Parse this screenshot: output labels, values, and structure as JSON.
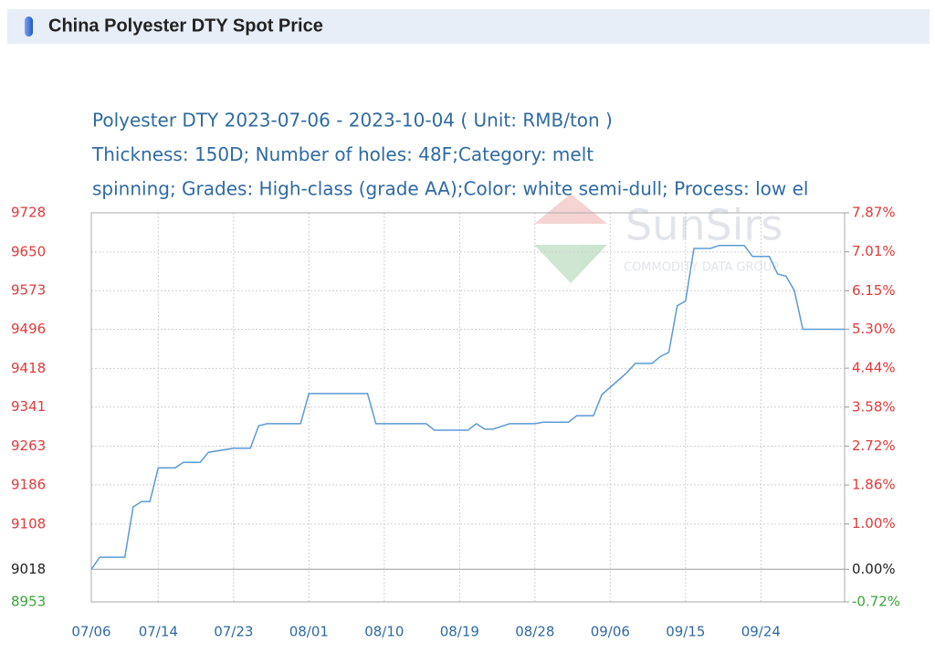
{
  "chart_data": {
    "type": "line",
    "title": "China Polyester DTY Spot Price",
    "subtitle": [
      "Polyester DTY 2023-07-06 - 2023-10-04    ( Unit: RMB/ton )",
      "Thickness: 150D; Number of holes: 48F;Category: melt",
      "spinning; Grades: High-class (grade AA);Color: white semi-dull; Process: low el"
    ],
    "watermark": [
      "SunSirs",
      "COMMODITY DATA GROUP"
    ],
    "x": [
      "07/06",
      "07/07",
      "07/10",
      "07/11",
      "07/12",
      "07/13",
      "07/14",
      "07/16",
      "07/17",
      "07/19",
      "07/20",
      "07/23",
      "07/25",
      "07/26",
      "07/27",
      "07/31",
      "08/01",
      "08/08",
      "08/09",
      "08/15",
      "08/16",
      "08/20",
      "08/21",
      "08/22",
      "08/23",
      "08/25",
      "08/28",
      "08/29",
      "09/01",
      "09/02",
      "09/04",
      "09/05",
      "09/07",
      "09/08",
      "09/09",
      "09/11",
      "09/12",
      "09/13",
      "09/14",
      "09/15",
      "09/16",
      "09/18",
      "09/19",
      "09/22",
      "09/23",
      "09/25",
      "09/26",
      "09/27",
      "09/28",
      "09/29",
      "10/04"
    ],
    "series": [
      {
        "color": "#5b9bd5",
        "values": [
          9018,
          9042,
          9042,
          9142,
          9153,
          9153,
          9220,
          9220,
          9231,
          9231,
          9251,
          9259,
          9259,
          9304,
          9308,
          9308,
          9368,
          9368,
          9308,
          9308,
          9295,
          9295,
          9308,
          9297,
          9297,
          9308,
          9308,
          9311,
          9311,
          9324,
          9324,
          9366,
          9395,
          9410,
          9428,
          9428,
          9442,
          9450,
          9543,
          9552,
          9657,
          9657,
          9663,
          9663,
          9641,
          9641,
          9606,
          9602,
          9573,
          9496,
          9496
        ]
      }
    ],
    "xlim": [
      "07/06",
      "10/04"
    ],
    "xticks": [
      "07/06",
      "07/14",
      "07/23",
      "08/01",
      "08/10",
      "08/19",
      "08/28",
      "09/06",
      "09/15",
      "09/24"
    ],
    "ylim": [
      8953,
      9728
    ],
    "yticks": [
      9728,
      9650,
      9573,
      9496,
      9418,
      9341,
      9263,
      9186,
      9108,
      9018,
      8953
    ],
    "y2lim": [
      -0.72,
      7.87
    ],
    "y2ticks": [
      {
        "value": 7.87,
        "label": "7.87%"
      },
      {
        "value": 7.01,
        "label": "7.01%"
      },
      {
        "value": 6.15,
        "label": "6.15%"
      },
      {
        "value": 5.3,
        "label": "5.30%"
      },
      {
        "value": 4.44,
        "label": "4.44%"
      },
      {
        "value": 3.58,
        "label": "3.58%"
      },
      {
        "value": 2.72,
        "label": "2.72%"
      },
      {
        "value": 1.86,
        "label": "1.86%"
      },
      {
        "value": 1.0,
        "label": "1.00%"
      },
      {
        "value": 0,
        "label": "0.00%"
      },
      {
        "value": -0.72,
        "label": "-0.72%"
      }
    ],
    "up_color": "#e03a3a",
    "down_color": "#3aa53a",
    "base_color": "#222222",
    "grid": true
  }
}
